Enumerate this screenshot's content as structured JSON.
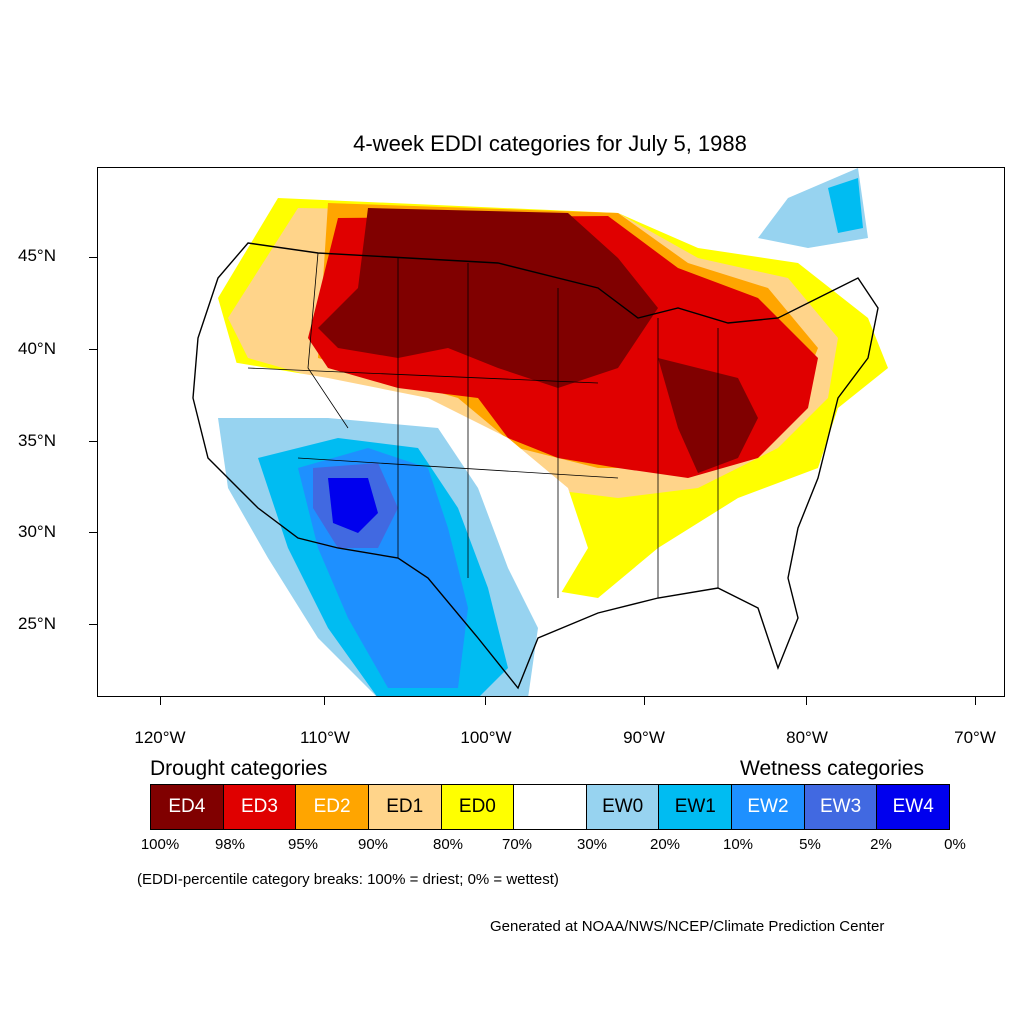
{
  "title": "4-week EDDI categories for July 5, 1988",
  "lat_labels": [
    "45°N",
    "40°N",
    "35°N",
    "30°N",
    "25°N"
  ],
  "lon_labels": [
    "120°W",
    "110°W",
    "100°W",
    "90°W",
    "80°W",
    "70°W"
  ],
  "drought_heading": "Drought categories",
  "wetness_heading": "Wetness categories",
  "legend": [
    {
      "label": "ED4",
      "color": "#800000",
      "text_color": "#ffffff"
    },
    {
      "label": "ED3",
      "color": "#e00000",
      "text_color": "#ffffff"
    },
    {
      "label": "ED2",
      "color": "#ffa500",
      "text_color": "#ffffff"
    },
    {
      "label": "ED1",
      "color": "#ffd48a",
      "text_color": "#000000"
    },
    {
      "label": "ED0",
      "color": "#ffff00",
      "text_color": "#000000"
    },
    {
      "label": "",
      "color": "#ffffff",
      "text_color": "#000000"
    },
    {
      "label": "EW0",
      "color": "#97d3f0",
      "text_color": "#000000"
    },
    {
      "label": "EW1",
      "color": "#00bcf2",
      "text_color": "#000000"
    },
    {
      "label": "EW2",
      "color": "#1e90ff",
      "text_color": "#ffffff"
    },
    {
      "label": "EW3",
      "color": "#4169e1",
      "text_color": "#ffffff"
    },
    {
      "label": "EW4",
      "color": "#0000ee",
      "text_color": "#ffffff"
    }
  ],
  "percent_breaks": [
    "100%",
    "98%",
    "95%",
    "90%",
    "80%",
    "70%",
    "30%",
    "20%",
    "10%",
    "5%",
    "2%",
    "0%"
  ],
  "note": "(EDDI-percentile category breaks: 100% = driest; 0% = wettest)",
  "credit": "Generated at NOAA/NWS/NCEP/Climate Prediction Center"
}
